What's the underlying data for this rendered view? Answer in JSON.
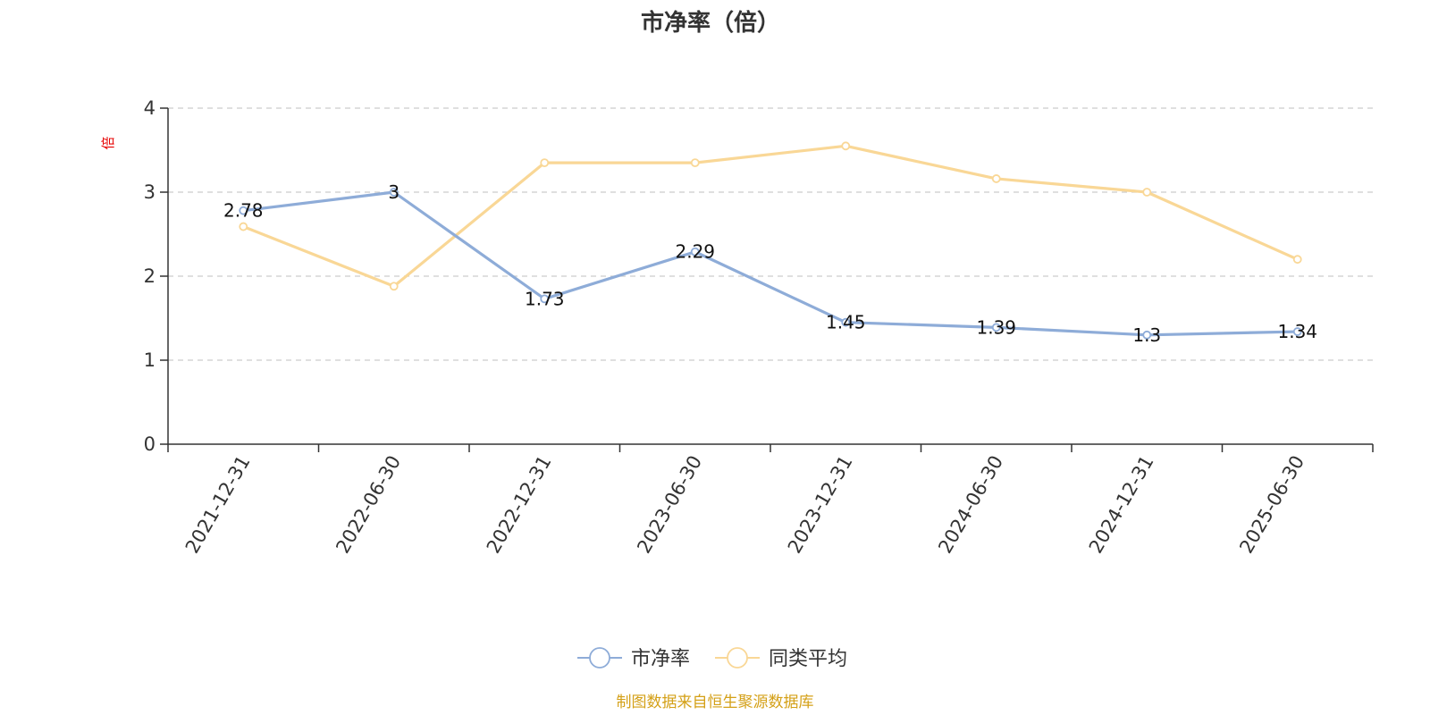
{
  "chart_data": {
    "type": "line",
    "title": "市净率（倍）",
    "ylabel": "倍",
    "xlabel": "",
    "categories": [
      "2021-12-31",
      "2022-06-30",
      "2022-12-31",
      "2023-06-30",
      "2023-12-31",
      "2024-06-30",
      "2024-12-31",
      "2025-06-30"
    ],
    "ylim": [
      0,
      4
    ],
    "yticks": [
      0,
      1,
      2,
      3,
      4
    ],
    "grid": true,
    "legend_position": "bottom",
    "series": [
      {
        "name": "市净率",
        "color": "#8eacd8",
        "values": [
          2.78,
          3,
          1.73,
          2.29,
          1.45,
          1.39,
          1.3,
          1.34
        ],
        "labels": [
          "2.78",
          "3",
          "1.73",
          "2.29",
          "1.45",
          "1.39",
          "1.3",
          "1.34"
        ],
        "show_labels": true
      },
      {
        "name": "同类平均",
        "color": "#f9d796",
        "values": [
          2.59,
          1.88,
          3.35,
          3.35,
          3.55,
          3.16,
          3.0,
          2.2
        ],
        "show_labels": false
      }
    ],
    "source": "制图数据来自恒生聚源数据库"
  }
}
